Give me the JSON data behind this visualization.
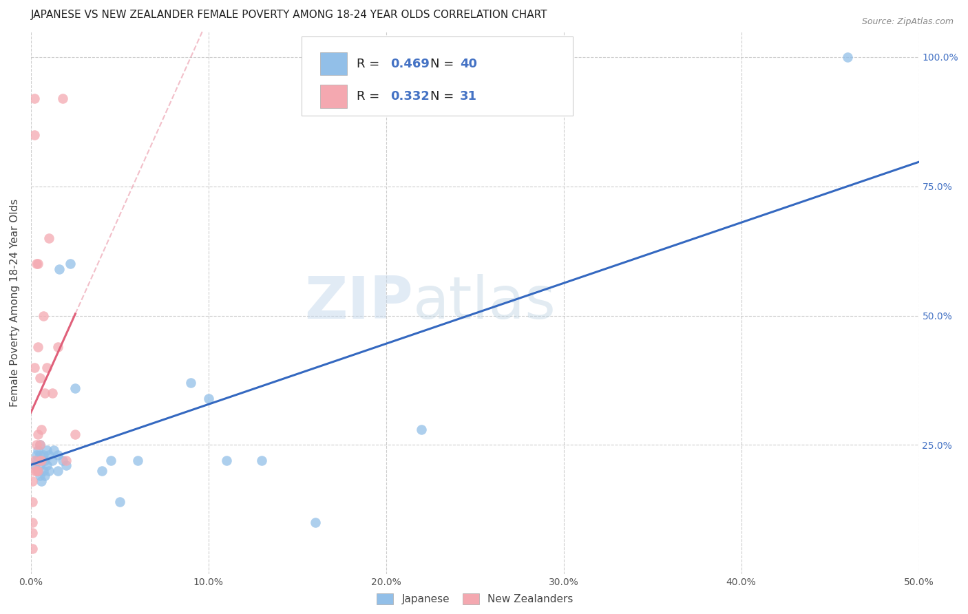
{
  "title": "JAPANESE VS NEW ZEALANDER FEMALE POVERTY AMONG 18-24 YEAR OLDS CORRELATION CHART",
  "source": "Source: ZipAtlas.com",
  "ylabel": "Female Poverty Among 18-24 Year Olds",
  "xlim": [
    0.0,
    0.5
  ],
  "ylim": [
    0.0,
    1.05
  ],
  "xtick_labels": [
    "0.0%",
    "10.0%",
    "20.0%",
    "30.0%",
    "40.0%",
    "50.0%"
  ],
  "xtick_vals": [
    0.0,
    0.1,
    0.2,
    0.3,
    0.4,
    0.5
  ],
  "ytick_vals": [
    0.25,
    0.5,
    0.75,
    1.0
  ],
  "right_ytick_labels": [
    "25.0%",
    "50.0%",
    "75.0%",
    "100.0%"
  ],
  "right_ytick_vals": [
    0.25,
    0.5,
    0.75,
    1.0
  ],
  "japanese_color": "#92bfe8",
  "nz_color": "#f4a8b0",
  "japanese_line_color": "#3468c0",
  "nz_line_color": "#e0607a",
  "background_color": "#ffffff",
  "grid_color": "#c8c8c8",
  "watermark_zip": "ZIP",
  "watermark_atlas": "atlas",
  "japanese_r": "0.469",
  "japanese_n": "40",
  "nz_r": "0.332",
  "nz_n": "31",
  "japanese_x": [
    0.002,
    0.003,
    0.003,
    0.004,
    0.004,
    0.005,
    0.005,
    0.005,
    0.005,
    0.005,
    0.006,
    0.006,
    0.007,
    0.007,
    0.008,
    0.008,
    0.009,
    0.009,
    0.01,
    0.01,
    0.012,
    0.013,
    0.015,
    0.015,
    0.016,
    0.018,
    0.02,
    0.022,
    0.025,
    0.04,
    0.045,
    0.05,
    0.06,
    0.09,
    0.1,
    0.11,
    0.13,
    0.16,
    0.22,
    0.46
  ],
  "japanese_y": [
    0.21,
    0.22,
    0.23,
    0.2,
    0.24,
    0.19,
    0.21,
    0.22,
    0.23,
    0.25,
    0.18,
    0.22,
    0.2,
    0.23,
    0.19,
    0.22,
    0.21,
    0.24,
    0.2,
    0.23,
    0.22,
    0.24,
    0.2,
    0.23,
    0.59,
    0.22,
    0.21,
    0.6,
    0.36,
    0.2,
    0.22,
    0.14,
    0.22,
    0.37,
    0.34,
    0.22,
    0.22,
    0.1,
    0.28,
    1.0
  ],
  "nz_x": [
    0.001,
    0.001,
    0.001,
    0.001,
    0.001,
    0.002,
    0.002,
    0.002,
    0.002,
    0.002,
    0.003,
    0.003,
    0.003,
    0.004,
    0.004,
    0.004,
    0.004,
    0.005,
    0.005,
    0.005,
    0.006,
    0.006,
    0.007,
    0.008,
    0.009,
    0.01,
    0.012,
    0.015,
    0.018,
    0.02,
    0.025
  ],
  "nz_y": [
    0.05,
    0.08,
    0.1,
    0.14,
    0.18,
    0.2,
    0.22,
    0.4,
    0.85,
    0.92,
    0.2,
    0.25,
    0.6,
    0.2,
    0.27,
    0.44,
    0.6,
    0.22,
    0.38,
    0.25,
    0.22,
    0.28,
    0.5,
    0.35,
    0.4,
    0.65,
    0.35,
    0.44,
    0.92,
    0.22,
    0.27
  ],
  "title_fontsize": 11,
  "axis_label_fontsize": 11,
  "tick_fontsize": 10,
  "legend_fontsize": 13,
  "marker_size": 110
}
